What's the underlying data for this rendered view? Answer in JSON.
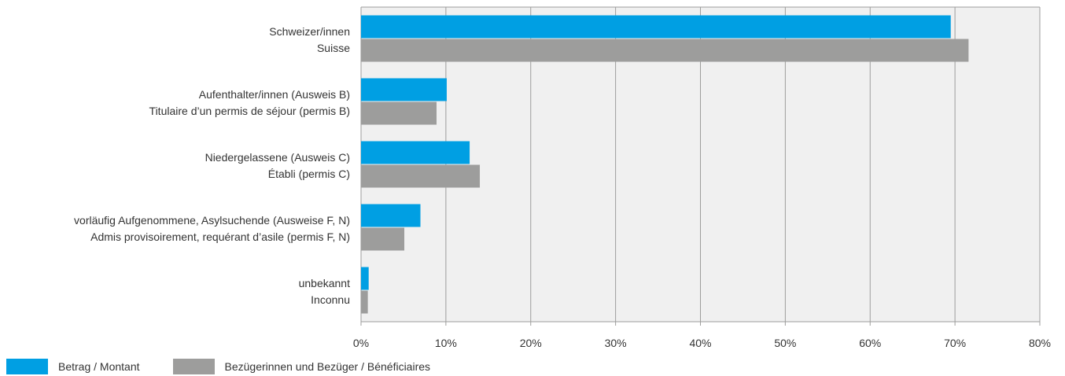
{
  "chart_data": {
    "type": "bar",
    "orientation": "horizontal",
    "categories": [
      [
        "Schweizer/innen",
        "Suisse"
      ],
      [
        "Aufenthalter/innen (Ausweis B)",
        "Titulaire d’un permis de séjour (permis B)"
      ],
      [
        "Niedergelassene (Ausweis C)",
        "Établi (permis C)"
      ],
      [
        "vorläufig Aufgenommene, Asylsuchende (Ausweise F, N)",
        "Admis provisoirement, requérant d’asile (permis F, N)"
      ],
      [
        "unbekannt",
        "Inconnu"
      ]
    ],
    "series": [
      {
        "name": "Betrag / Montant",
        "color": "#009fe3",
        "values": [
          69.5,
          10.1,
          12.8,
          7.0,
          0.9
        ]
      },
      {
        "name": "Bezügerinnen und Bezüger / Bénéficiaires",
        "color": "#9d9d9c",
        "values": [
          71.6,
          8.9,
          14.0,
          5.1,
          0.8
        ]
      }
    ],
    "xlim": [
      0,
      80
    ],
    "xticks": [
      0,
      10,
      20,
      30,
      40,
      50,
      60,
      70,
      80
    ],
    "tick_suffix": "%",
    "grid": true,
    "legend_position": "bottom-left",
    "plot_background": "#f0f0f0",
    "grid_color": "#9d9d9c"
  }
}
